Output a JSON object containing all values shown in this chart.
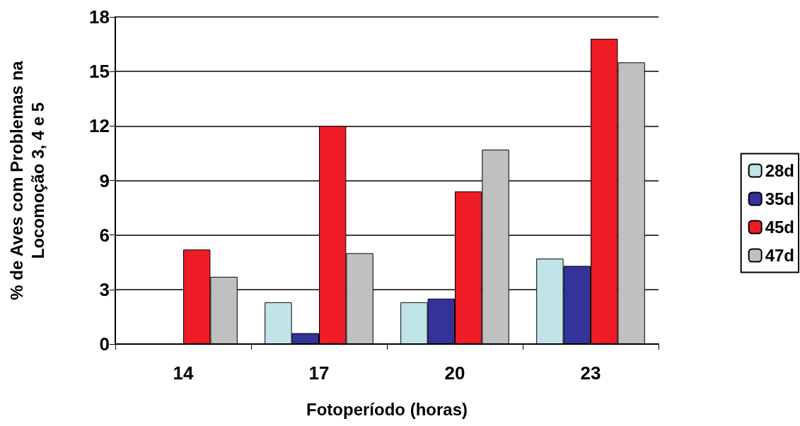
{
  "chart_data": {
    "type": "bar",
    "xlabel": "Fotoperíodo (horas)",
    "ylabel": "% de Aves com Problemas na\nLocomoção 3, 4 e 5",
    "categories": [
      "14",
      "17",
      "20",
      "23"
    ],
    "series": [
      {
        "name": "28d",
        "color": "#c0e4e8",
        "values": [
          0,
          2.3,
          2.3,
          4.7
        ]
      },
      {
        "name": "35d",
        "color": "#333399",
        "values": [
          0,
          0.6,
          2.5,
          4.3
        ]
      },
      {
        "name": "45d",
        "color": "#ee1c25",
        "values": [
          5.2,
          12.0,
          8.4,
          16.8
        ]
      },
      {
        "name": "47d",
        "color": "#c0c0c0",
        "values": [
          3.7,
          5.0,
          10.7,
          15.5
        ]
      }
    ],
    "ylim": [
      0,
      18
    ],
    "yticks": [
      0,
      3,
      6,
      9,
      12,
      15,
      18
    ],
    "grid": "y",
    "legend": "right"
  }
}
